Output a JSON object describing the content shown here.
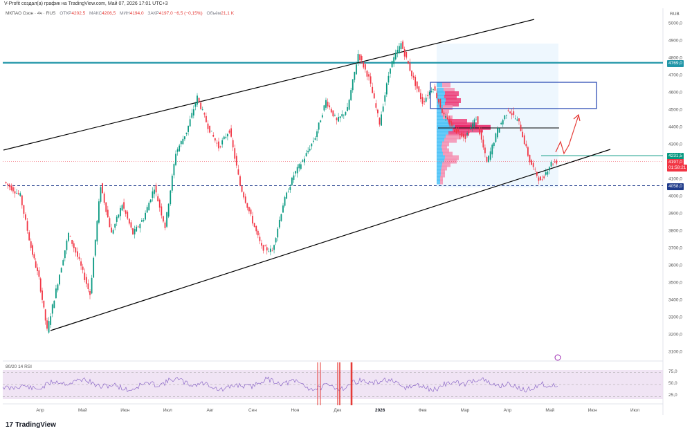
{
  "header": {
    "attribution": "V-Profit создал(а) график на TradingView.com, Май 07, 2026 17:01 UTC+3",
    "symbol": "МКПАО Озон · 4ч · RUS",
    "open_label": "ОТКР",
    "open_value": "4202,5",
    "high_label": "МАКС",
    "high_value": "4206,5",
    "low_label": "МИН",
    "low_value": "4194,0",
    "close_label": "ЗАКР",
    "close_value": "4197,0",
    "change": "−6,5 (−0,15%)",
    "volume_label": "Объём",
    "volume_value": "21,1 K",
    "currency": "RUB"
  },
  "price_tags": {
    "level_4769": "4769,0",
    "level_4231": "4231,5",
    "last_price": "4197,0",
    "countdown": "01:58:21",
    "level_4058": "4058,0"
  },
  "rsi": {
    "label": "80/20 14 RSI",
    "levels": [
      "75,0",
      "50,0",
      "25,0"
    ]
  },
  "brand": {
    "name": "TradingView",
    "logo_text": "17"
  },
  "colors": {
    "candle_up": "#089981",
    "candle_down": "#f23645",
    "channel": "#000000",
    "resistance": "#2196a8",
    "support_dash": "#1e3a8a",
    "zone_border": "#1e40af",
    "rsi_fill": "#e9d8ef",
    "rsi_line": "#7e57c2",
    "projection": "#e53935"
  },
  "chart_data": {
    "type": "candlestick",
    "instrument": "МКПАО Озон",
    "timeframe": "4ч",
    "ylim": [
      3050,
      5050
    ],
    "y_ticks": [
      "5000,0",
      "4900,0",
      "4800,0",
      "4700,0",
      "4600,0",
      "4500,0",
      "4400,0",
      "4300,0",
      "4200,0",
      "4100,0",
      "4000,0",
      "3900,0",
      "3800,0",
      "3700,0",
      "3600,0",
      "3500,0",
      "3400,0",
      "3300,0",
      "3200,0",
      "3100,0"
    ],
    "x_ticks": [
      "Апр",
      "Май",
      "Июн",
      "Июл",
      "Авг",
      "Сен",
      "Ноя",
      "Дек",
      "2026",
      "Фев",
      "Мар",
      "Апр",
      "Май",
      "Июн",
      "Июл"
    ],
    "price_path": [
      [
        0,
        4080
      ],
      [
        3,
        4000
      ],
      [
        5,
        3700
      ],
      [
        6.5,
        3520
      ],
      [
        8,
        3220
      ],
      [
        10,
        3500
      ],
      [
        12,
        3780
      ],
      [
        14,
        3620
      ],
      [
        16,
        3430
      ],
      [
        18,
        4060
      ],
      [
        20,
        3780
      ],
      [
        22,
        3950
      ],
      [
        24,
        3780
      ],
      [
        26,
        3870
      ],
      [
        28,
        4050
      ],
      [
        30,
        3820
      ],
      [
        32,
        4250
      ],
      [
        34,
        4370
      ],
      [
        36,
        4570
      ],
      [
        38,
        4400
      ],
      [
        40,
        4280
      ],
      [
        42,
        4380
      ],
      [
        44,
        4060
      ],
      [
        46,
        3880
      ],
      [
        48,
        3700
      ],
      [
        50,
        3680
      ],
      [
        52,
        3950
      ],
      [
        54,
        4120
      ],
      [
        56,
        4220
      ],
      [
        58,
        4340
      ],
      [
        60,
        4550
      ],
      [
        62,
        4430
      ],
      [
        64,
        4500
      ],
      [
        66,
        4820
      ],
      [
        68,
        4680
      ],
      [
        70,
        4420
      ],
      [
        72,
        4750
      ],
      [
        74,
        4880
      ],
      [
        76,
        4700
      ],
      [
        78,
        4540
      ],
      [
        80,
        4630
      ],
      [
        82,
        4460
      ],
      [
        84,
        4380
      ],
      [
        86,
        4340
      ],
      [
        88,
        4450
      ],
      [
        90,
        4190
      ],
      [
        92,
        4380
      ],
      [
        94,
        4500
      ],
      [
        96,
        4420
      ],
      [
        98,
        4200
      ],
      [
        100,
        4080
      ],
      [
        102,
        4190
      ],
      [
        103,
        4197
      ]
    ],
    "last_price": 4197.0,
    "horizontal_levels": [
      4769.0,
      4231.5,
      4058.0,
      4392.0
    ],
    "channel_upper": [
      [
        4300,
        "start"
      ],
      [
        5030,
        "end"
      ]
    ],
    "channel_lower": [
      [
        3220,
        "start"
      ],
      [
        4310,
        "end"
      ]
    ],
    "rsi_levels": [
      75,
      50,
      25
    ]
  }
}
